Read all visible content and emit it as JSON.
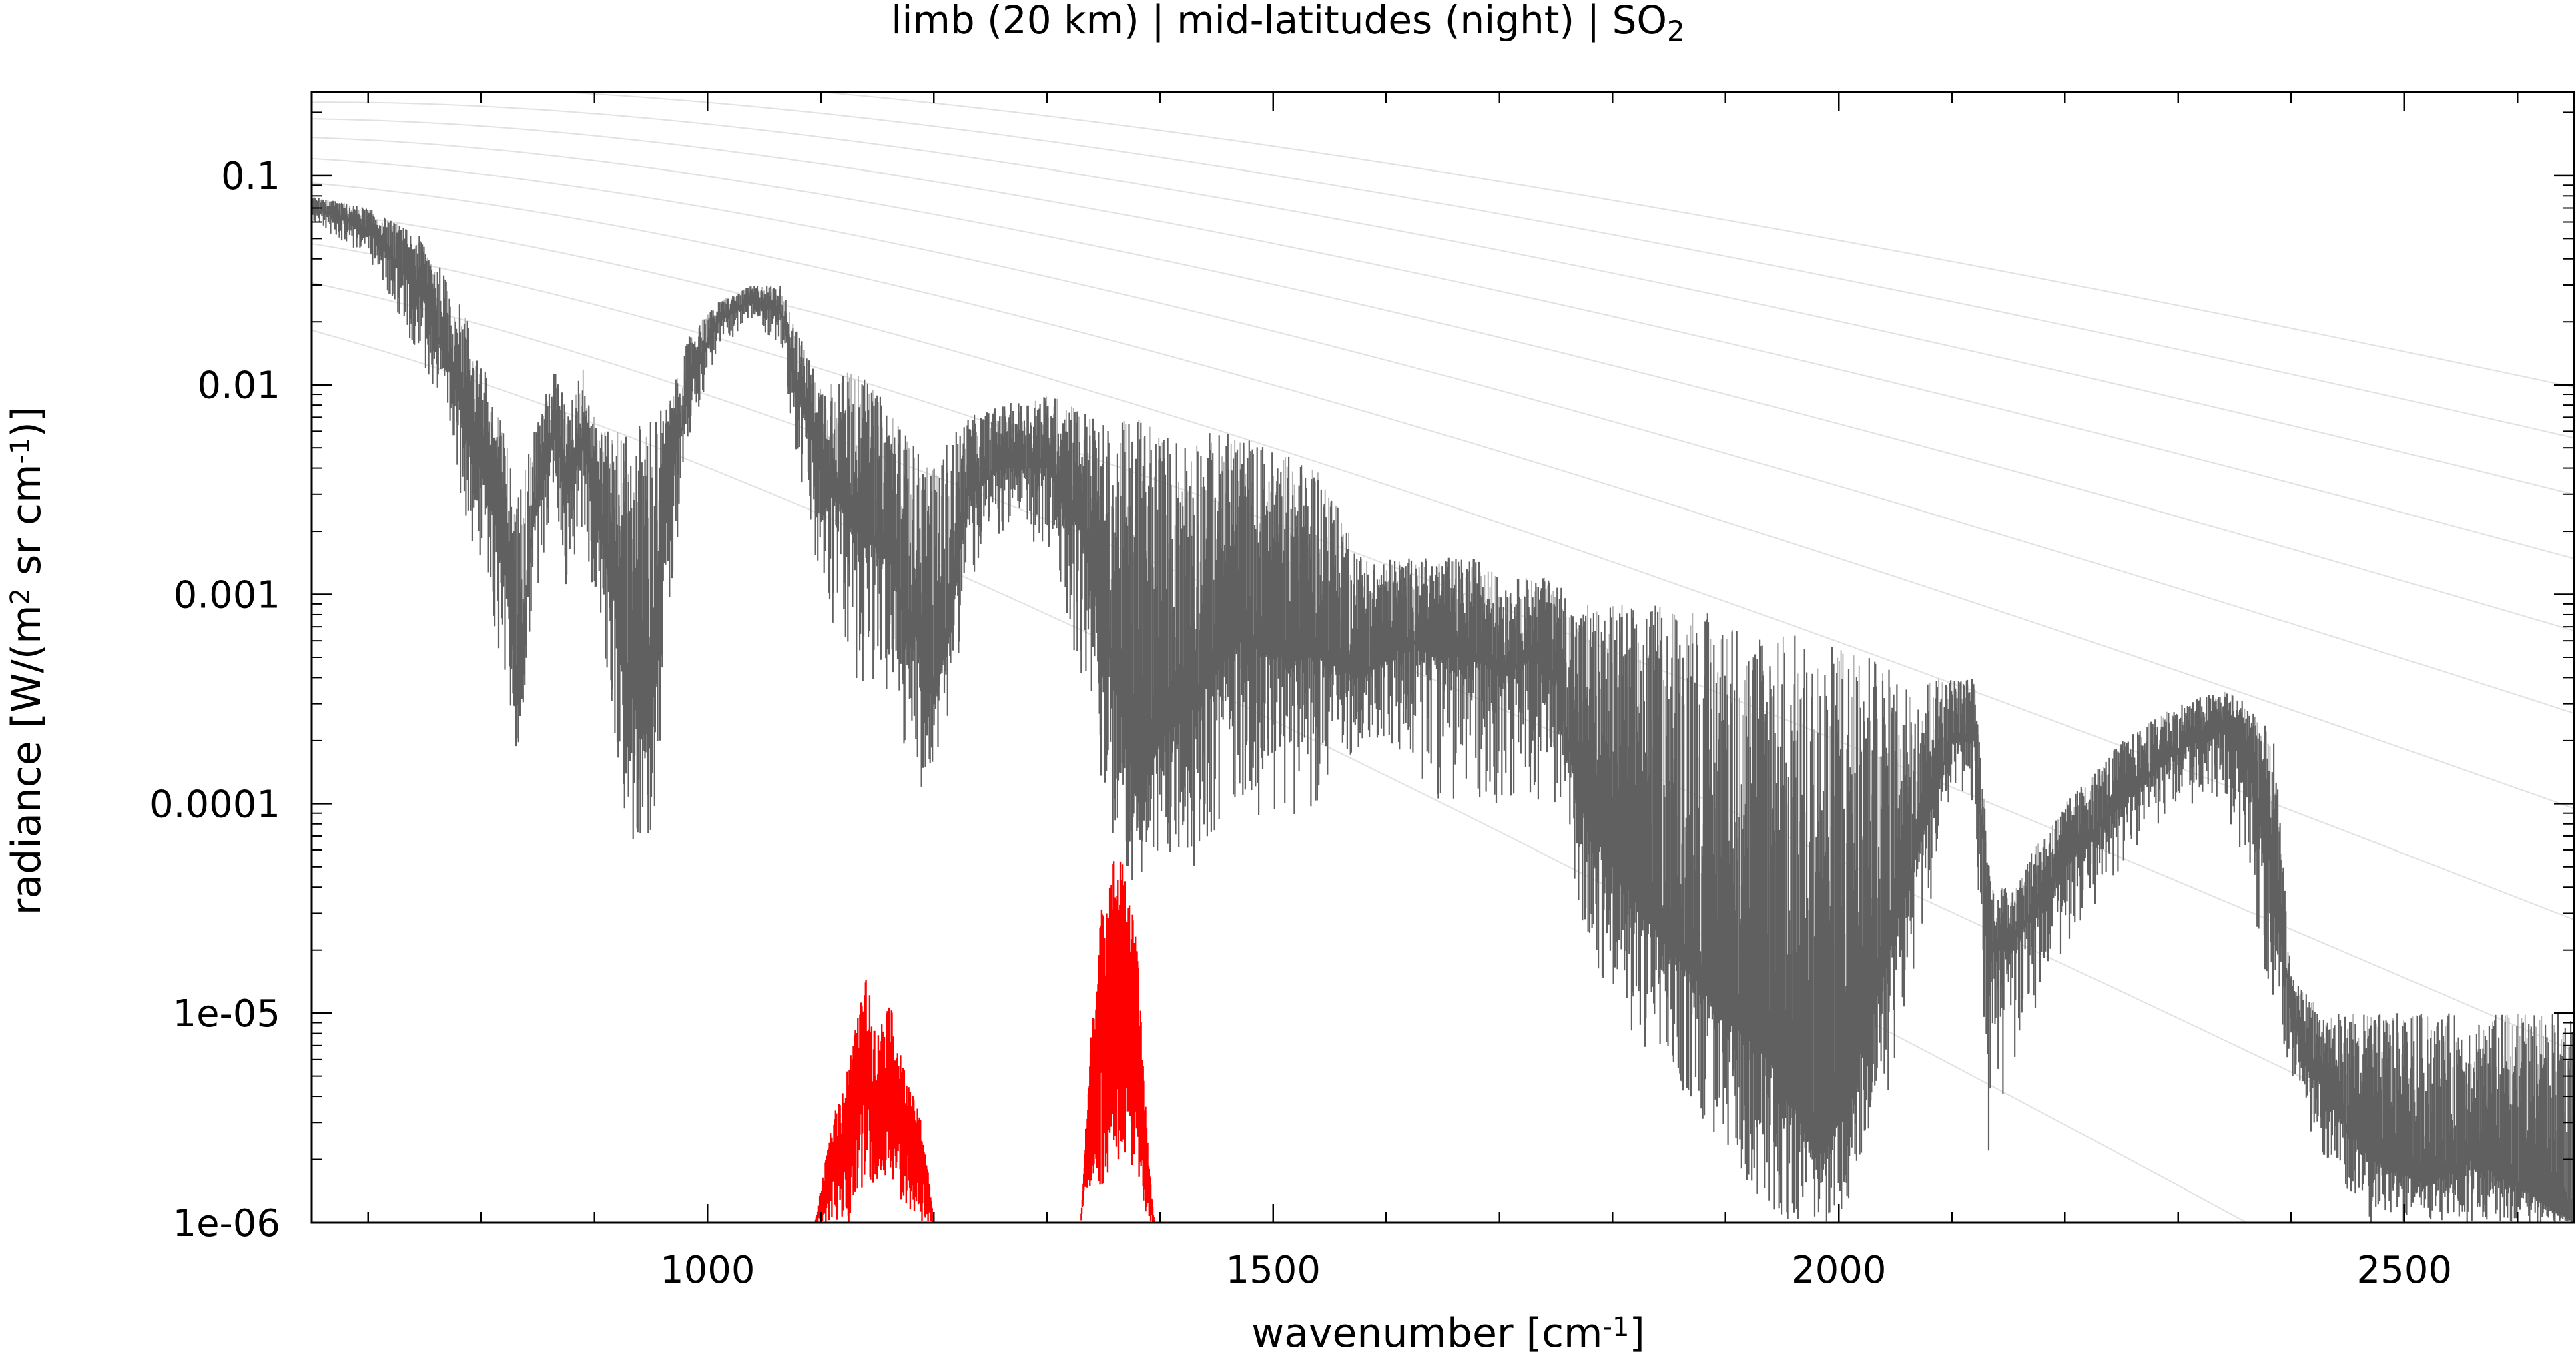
{
  "chart_data": {
    "type": "line",
    "title": {
      "parts": [
        {
          "text": "limb (20 km) | mid-latitudes (night) | SO"
        },
        {
          "text": "2",
          "sub": true
        }
      ]
    },
    "xlabel": {
      "parts": [
        {
          "text": "wavenumber [cm"
        },
        {
          "text": "-1",
          "sup": true
        },
        {
          "text": "]"
        }
      ]
    },
    "ylabel": {
      "parts": [
        {
          "text": "radiance [W/(m"
        },
        {
          "text": "2",
          "sup": true
        },
        {
          "text": " sr cm"
        },
        {
          "text": "-1",
          "sup": true
        },
        {
          "text": ")]"
        }
      ]
    },
    "xlim": [
      650,
      2650
    ],
    "ylim": [
      1e-06,
      0.25
    ],
    "yscale": "log",
    "x_ticks": [
      1000,
      1500,
      2000,
      2500
    ],
    "x_tick_labels": [
      "1000",
      "1500",
      "2000",
      "2500"
    ],
    "y_ticks": [
      0.1,
      0.01,
      0.001,
      0.0001,
      1e-05,
      1e-06
    ],
    "y_tick_labels": [
      "0.1",
      "0.01",
      "0.001",
      "0.0001",
      "1e-05",
      "1e-06"
    ],
    "grid": false,
    "legend": "none",
    "colors": {
      "total_radiance": "#606060",
      "total_radiance_light": "#b4b4b4",
      "so2_contribution": "#ff0000",
      "reference_curves": "#c8c8c8",
      "axes": "#000000"
    },
    "series": [
      {
        "role": "total",
        "color": "#606060",
        "envelope": {
          "x": [
            650,
            700,
            750,
            790,
            820,
            832,
            845,
            865,
            875,
            890,
            905,
            920,
            935,
            945,
            955,
            965,
            985,
            1010,
            1040,
            1065,
            1080,
            1100,
            1130,
            1160,
            1185,
            1200,
            1215,
            1230,
            1260,
            1300,
            1330,
            1360,
            1380,
            1400,
            1430,
            1470,
            1500,
            1540,
            1580,
            1620,
            1650,
            1680,
            1700,
            1730,
            1750,
            1770,
            1800,
            1850,
            1900,
            1950,
            1980,
            2000,
            2030,
            2060,
            2100,
            2120,
            2135,
            2150,
            2200,
            2250,
            2300,
            2340,
            2365,
            2385,
            2400,
            2430,
            2470,
            2520,
            2560,
            2600,
            2650
          ],
          "upper": [
            0.08,
            0.07,
            0.05,
            0.02,
            0.006,
            0.003,
            0.006,
            0.012,
            0.008,
            0.012,
            0.006,
            0.006,
            0.006,
            0.008,
            0.008,
            0.008,
            0.018,
            0.025,
            0.03,
            0.03,
            0.018,
            0.01,
            0.012,
            0.008,
            0.005,
            0.004,
            0.006,
            0.007,
            0.008,
            0.009,
            0.008,
            0.006,
            0.008,
            0.006,
            0.006,
            0.006,
            0.005,
            0.004,
            0.0015,
            0.0015,
            0.0015,
            0.0015,
            0.0012,
            0.0012,
            0.0012,
            0.0009,
            0.0009,
            0.0009,
            0.0008,
            0.0007,
            0.0006,
            0.0006,
            0.0005,
            0.0004,
            0.0004,
            0.0004,
            4e-05,
            4e-05,
            0.0001,
            0.0002,
            0.0003,
            0.00035,
            0.0003,
            0.0002,
            1.5e-05,
            1e-05,
            1e-05,
            1e-05,
            1e-05,
            1e-05,
            1e-05
          ],
          "lower": [
            0.06,
            0.04,
            0.012,
            0.002,
            0.0004,
            0.00015,
            0.0008,
            0.003,
            0.001,
            0.002,
            0.0006,
            0.00015,
            5e-05,
            5e-05,
            0.0001,
            0.0008,
            0.006,
            0.015,
            0.02,
            0.015,
            0.004,
            0.0008,
            0.0004,
            0.0003,
            0.0001,
            0.00015,
            0.0003,
            0.001,
            0.002,
            0.0015,
            0.0004,
            5e-05,
            4e-05,
            5e-05,
            5e-05,
            0.0001,
            8e-05,
            0.0001,
            0.0002,
            0.00015,
            0.0001,
            0.0001,
            0.0001,
            0.0001,
            0.0001,
            3e-05,
            1e-05,
            5e-06,
            2e-06,
            1e-06,
            1e-06,
            1e-06,
            2e-06,
            1e-05,
            0.0001,
            0.0001,
            1e-06,
            5e-06,
            2e-05,
            5e-05,
            0.0001,
            0.0001,
            3e-05,
            1e-05,
            4e-06,
            2e-06,
            1e-06,
            1e-06,
            1e-06,
            1e-06,
            1e-06
          ],
          "mid": [
            0.07,
            0.055,
            0.025,
            0.006,
            0.0015,
            0.0003,
            0.002,
            0.006,
            0.003,
            0.005,
            0.002,
            0.0008,
            0.0003,
            0.0002,
            0.0004,
            0.003,
            0.01,
            0.02,
            0.025,
            0.022,
            0.009,
            0.004,
            0.002,
            0.0015,
            0.0006,
            0.0003,
            0.0007,
            0.003,
            0.004,
            0.004,
            0.002,
            0.0004,
            0.0001,
            0.0002,
            0.0003,
            0.0006,
            0.0005,
            0.0005,
            0.0004,
            0.0006,
            0.0005,
            0.0005,
            0.0004,
            0.0005,
            0.0004,
            0.0001,
            5e-05,
            2e-05,
            1e-05,
            5e-06,
            2e-06,
            3e-06,
            1e-05,
            4e-05,
            0.0002,
            0.0002,
            2e-05,
            2e-05,
            5e-05,
            0.0001,
            0.00018,
            0.00022,
            0.00015,
            4e-05,
            1e-05,
            4e-06,
            2e-06,
            1.5e-06,
            2e-06,
            1.5e-06,
            1e-06
          ]
        }
      },
      {
        "role": "so2",
        "color": "#ff0000",
        "bands": [
          {
            "x": [
              1095,
              1110,
              1125,
              1140,
              1150,
              1160,
              1175,
              1190,
              1200
            ],
            "upper": [
              1e-06,
              3e-06,
              6e-06,
              1.5e-05,
              8e-06,
              1.2e-05,
              5e-06,
              3e-06,
              1e-06
            ],
            "lower": [
              1e-06,
              1e-06,
              1e-06,
              1.5e-06,
              1.5e-06,
              1.5e-06,
              1.2e-06,
              1e-06,
              1e-06
            ]
          },
          {
            "x": [
              1330,
              1340,
              1350,
              1360,
              1370,
              1380,
              1390,
              1395
            ],
            "upper": [
              1e-06,
              1e-05,
              4e-05,
              6e-05,
              5e-05,
              2e-05,
              2e-06,
              1e-06
            ],
            "lower": [
              1e-06,
              1.5e-06,
              1.5e-06,
              2e-06,
              2e-06,
              1.5e-06,
              1e-06,
              1e-06
            ]
          }
        ]
      },
      {
        "role": "reference",
        "color": "#c8c8c8",
        "planck_temperatures_K": [
          180,
          200,
          220,
          240,
          260,
          280,
          300,
          320,
          340,
          360,
          380
        ]
      }
    ]
  }
}
